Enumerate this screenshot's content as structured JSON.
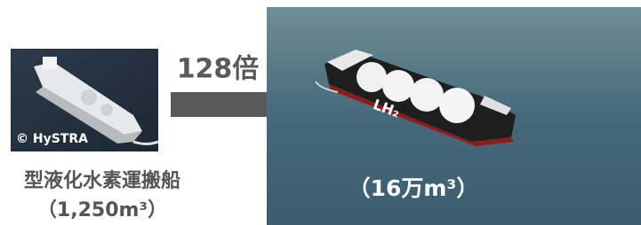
{
  "ratio_label": "128倍",
  "small_ship": {
    "credit": "© HySTRA",
    "caption": "型液化水素運搬船",
    "capacity": "（1,250m³）"
  },
  "large_ship": {
    "hull_label": "LH₂",
    "capacity": "（16万m³）"
  }
}
